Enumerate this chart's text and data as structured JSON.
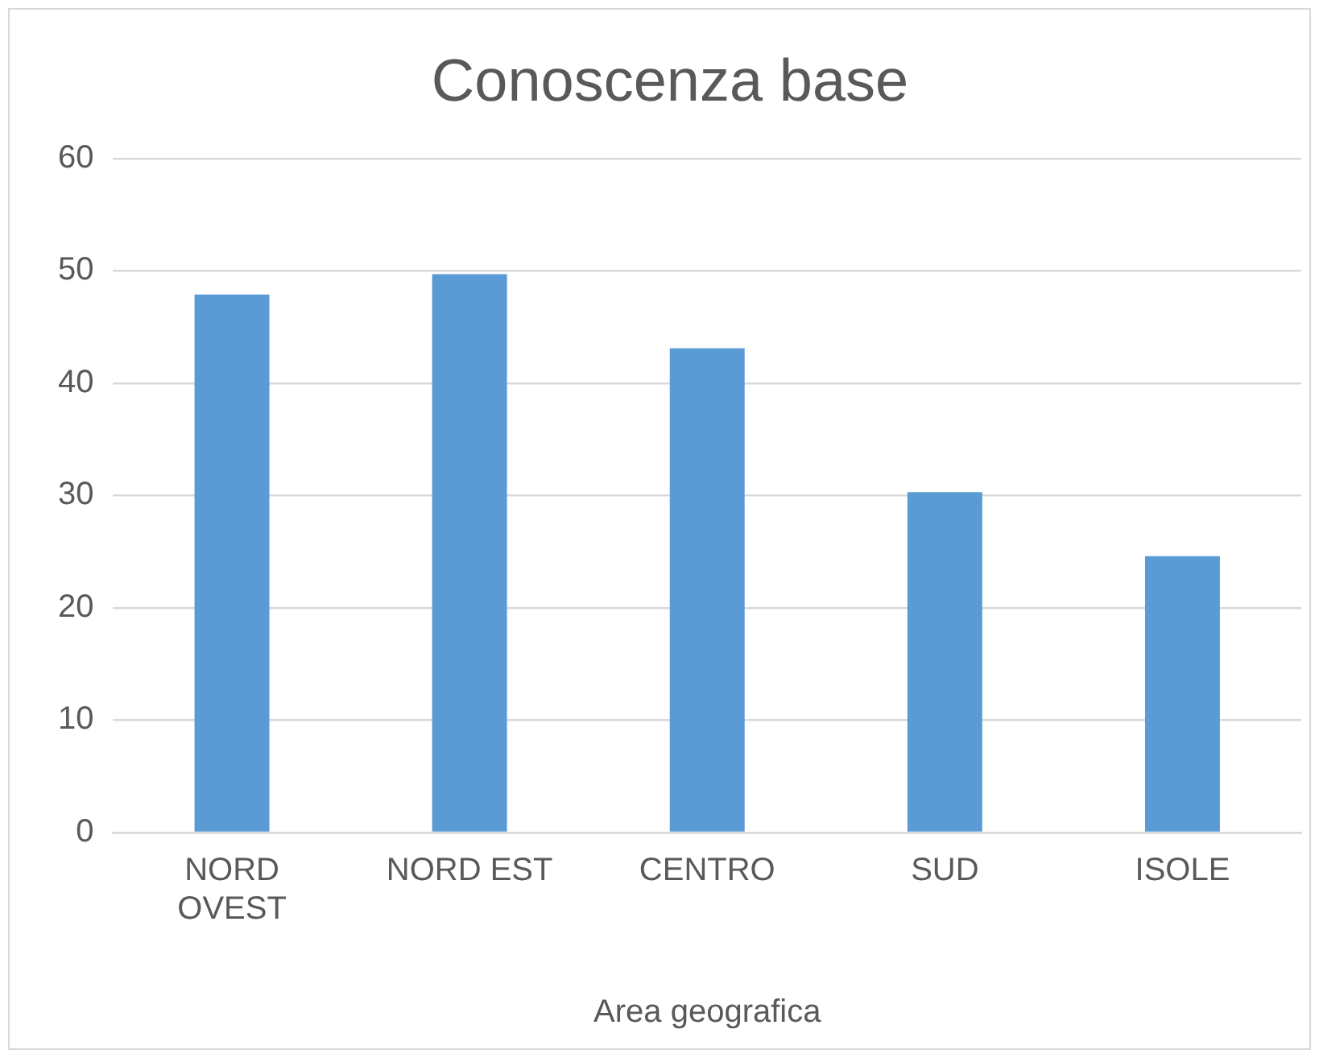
{
  "chart_data": {
    "type": "bar",
    "title": "Conoscenza base",
    "xlabel": "Area geografica",
    "categories": [
      "NORD OVEST",
      "NORD EST",
      "CENTRO",
      "SUD",
      "ISOLE"
    ],
    "values": [
      47.9,
      49.7,
      43.1,
      30.3,
      24.6
    ],
    "color": "#5b9bd5",
    "ylim": [
      0,
      60
    ],
    "yticks": [
      0,
      10,
      20,
      30,
      40,
      50,
      60
    ],
    "grid": "y",
    "legend": false
  }
}
